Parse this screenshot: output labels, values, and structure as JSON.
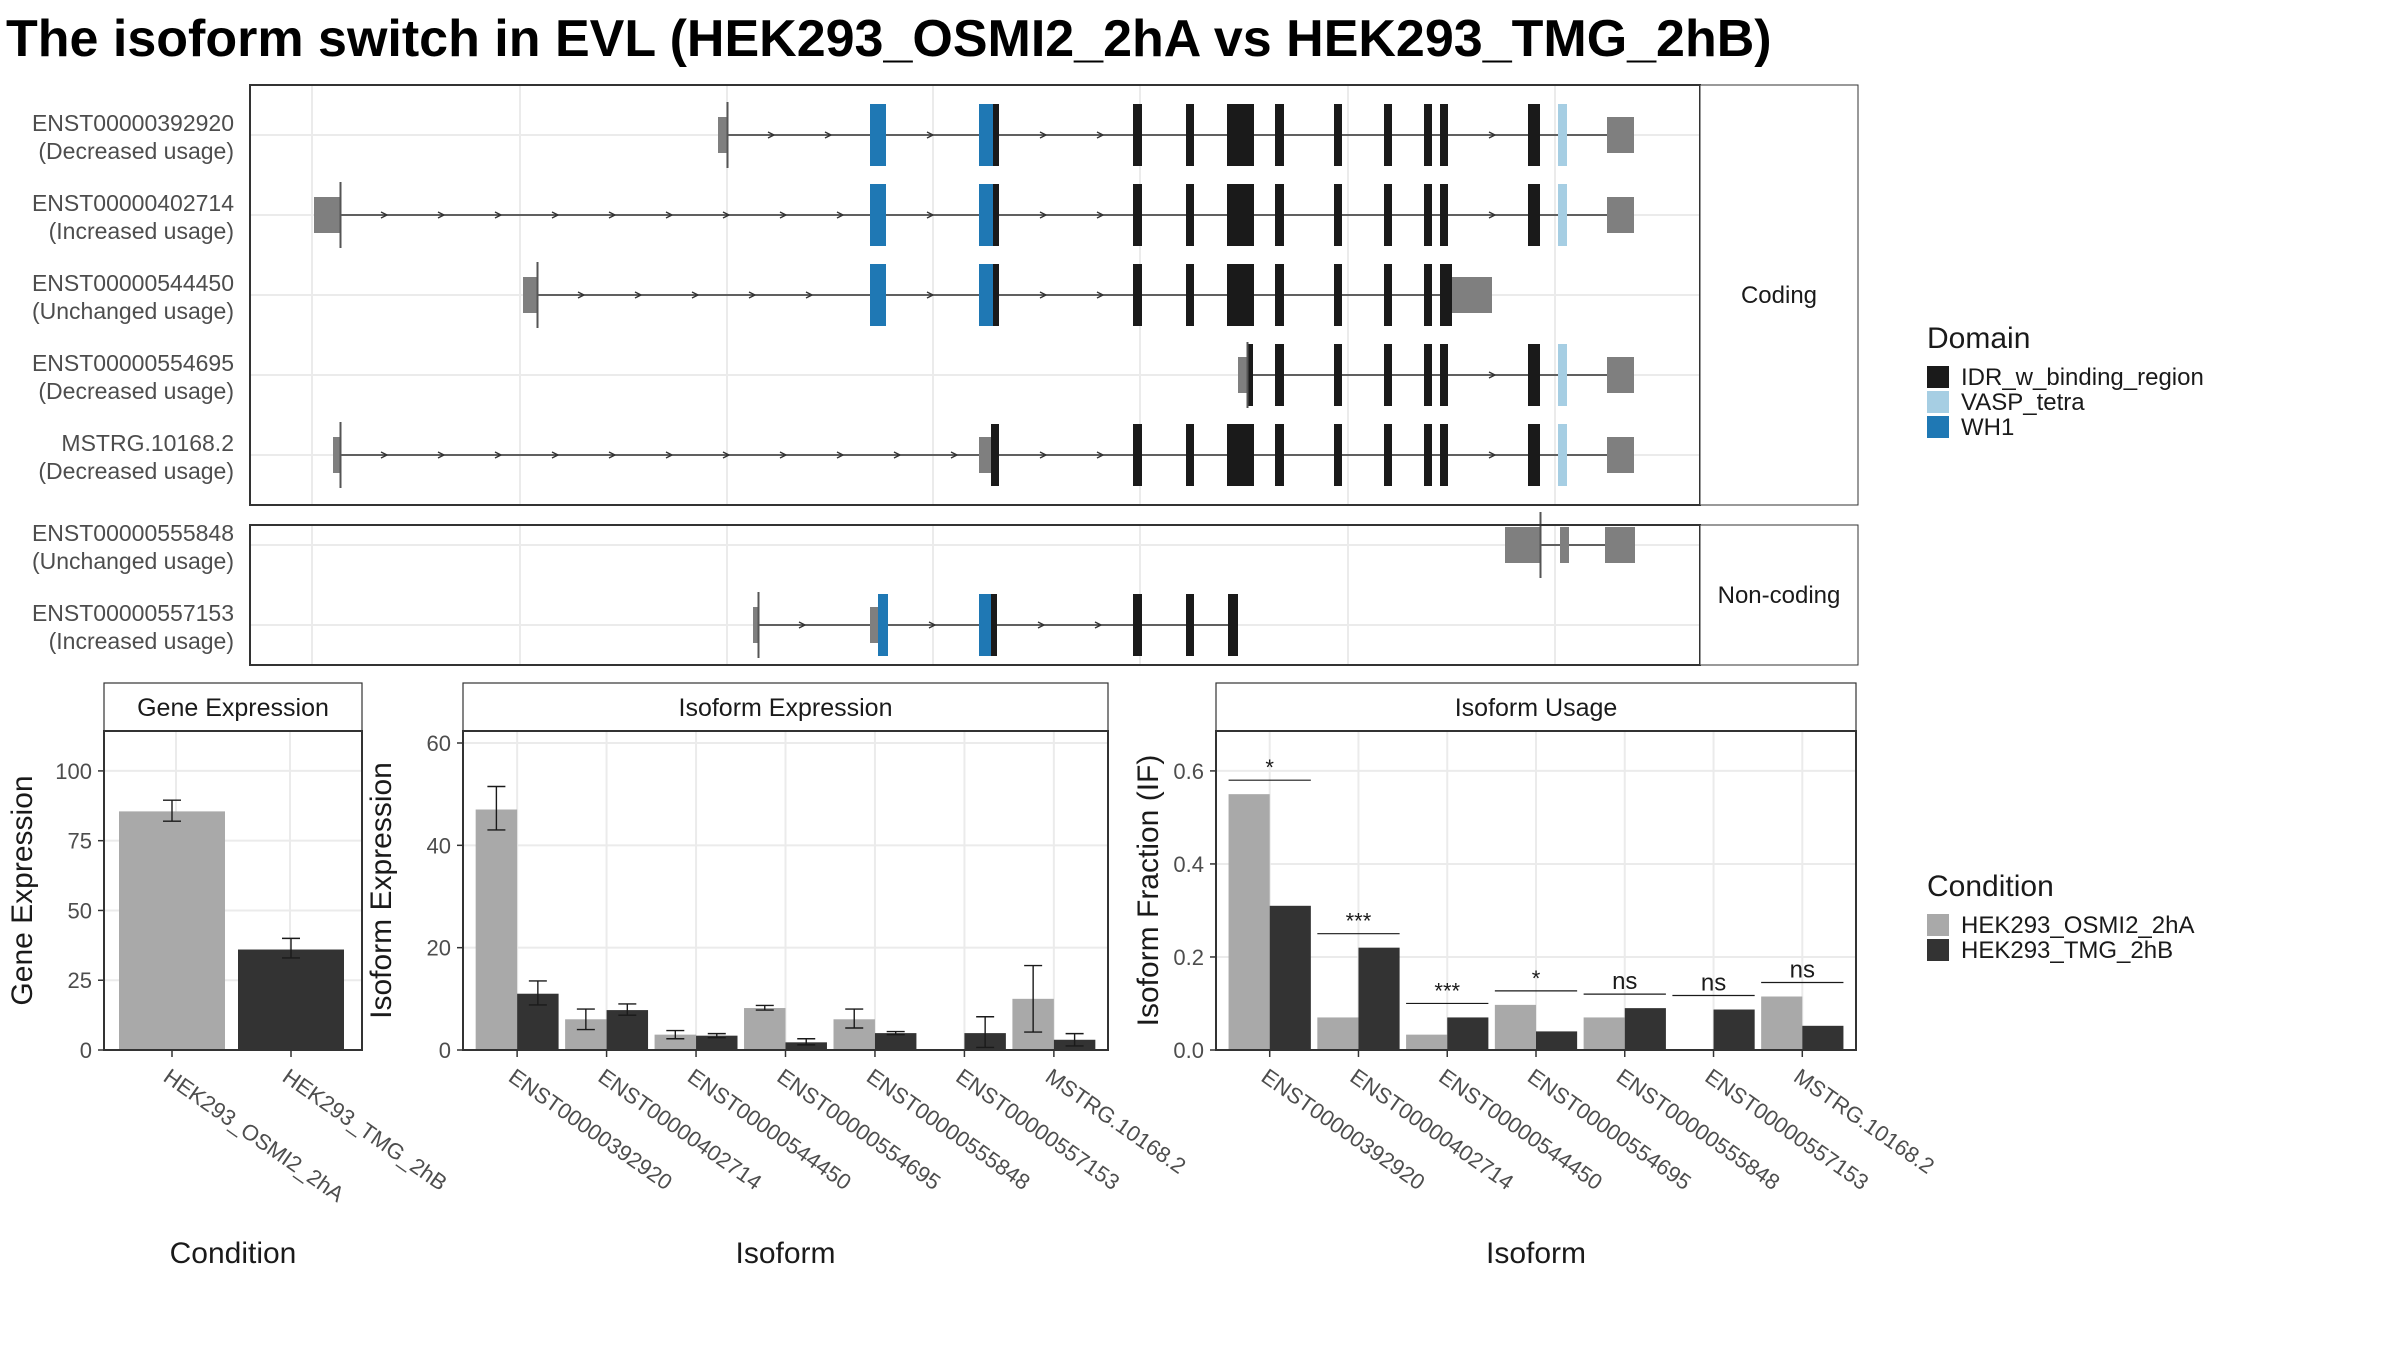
{
  "title": "The isoform switch in EVL (HEK293_OSMI2_2hA vs HEK293_TMG_2hB)",
  "colors": {
    "IDR_w_binding_region": "#1a1a1a",
    "VASP_tetra": "#a6cee3",
    "WH1": "#1f78b4",
    "non_domain_exon": "#7f7f7f",
    "cond_A": "#a9a9a9",
    "cond_B": "#333333"
  },
  "structure": {
    "panels": [
      {
        "strip": "Coding",
        "rows": [
          {
            "id": "ENST00000392920",
            "usage": "(Decreased usage)"
          },
          {
            "id": "ENST00000402714",
            "usage": "(Increased usage)"
          },
          {
            "id": "ENST00000544450",
            "usage": "(Unchanged usage)"
          },
          {
            "id": "ENST00000554695",
            "usage": "(Decreased usage)"
          },
          {
            "id": "MSTRG.10168.2",
            "usage": "(Decreased usage)"
          }
        ]
      },
      {
        "strip": "Non-coding",
        "rows": [
          {
            "id": "ENST00000555848",
            "usage": "(Unchanged usage)"
          },
          {
            "id": "ENST00000557153",
            "usage": "(Increased usage)"
          }
        ]
      }
    ],
    "legend_title": "Domain",
    "legend": [
      {
        "label": "IDR_w_binding_region",
        "key": "IDR_w_binding_region"
      },
      {
        "label": "VASP_tetra",
        "key": "VASP_tetra"
      },
      {
        "label": "WH1",
        "key": "WH1"
      }
    ]
  },
  "chart_data": [
    {
      "type": "bar",
      "title": "Gene Expression",
      "xlabel": "Condition",
      "ylabel": "Gene Expression",
      "ylim": [
        0,
        110
      ],
      "yticks": [
        0,
        25,
        50,
        75,
        100
      ],
      "categories": [
        "HEK293_OSMI2_2hA",
        "HEK293_TMG_2hB"
      ],
      "values": [
        85.5,
        36.0
      ],
      "err_low": [
        82.0,
        33.0
      ],
      "err_high": [
        89.5,
        40.0
      ]
    },
    {
      "type": "bar",
      "title": "Isoform Expression",
      "xlabel": "Isoform",
      "ylabel": "Isoform Expression",
      "ylim": [
        0,
        60
      ],
      "yticks": [
        0,
        20,
        40,
        60
      ],
      "categories": [
        "ENST00000392920",
        "ENST00000402714",
        "ENST00000544450",
        "ENST00000554695",
        "ENST00000555848",
        "ENST00000557153",
        "MSTRG.10168.2"
      ],
      "series": [
        {
          "name": "HEK293_OSMI2_2hA",
          "values": [
            47.0,
            6.0,
            3.0,
            8.2,
            6.0,
            0.0,
            10.0
          ],
          "err_low": [
            43.0,
            4.0,
            2.2,
            7.8,
            4.3,
            0.0,
            3.5
          ],
          "err_high": [
            51.5,
            8.0,
            3.8,
            8.7,
            8.0,
            0.0,
            16.5
          ]
        },
        {
          "name": "HEK293_TMG_2hB",
          "values": [
            11.0,
            7.8,
            2.8,
            1.5,
            3.3,
            3.3,
            2.0
          ],
          "err_low": [
            8.8,
            6.8,
            2.4,
            1.0,
            3.0,
            0.5,
            0.8
          ],
          "err_high": [
            13.5,
            9.0,
            3.2,
            2.2,
            3.6,
            6.5,
            3.2
          ]
        }
      ]
    },
    {
      "type": "bar",
      "title": "Isoform Usage",
      "xlabel": "Isoform",
      "ylabel": "Isoform Fraction (IF)",
      "ylim": [
        0,
        0.66
      ],
      "yticks": [
        0.0,
        0.2,
        0.4,
        0.6
      ],
      "categories": [
        "ENST00000392920",
        "ENST00000402714",
        "ENST00000544450",
        "ENST00000554695",
        "ENST00000555848",
        "ENST00000557153",
        "MSTRG.10168.2"
      ],
      "series": [
        {
          "name": "HEK293_OSMI2_2hA",
          "values": [
            0.55,
            0.07,
            0.033,
            0.097,
            0.07,
            0.0,
            0.115
          ]
        },
        {
          "name": "HEK293_TMG_2hB",
          "values": [
            0.31,
            0.22,
            0.07,
            0.04,
            0.09,
            0.087,
            0.052
          ]
        }
      ],
      "significance": [
        "*",
        "***",
        "***",
        "*",
        "ns",
        "ns",
        "ns"
      ]
    }
  ],
  "condition_legend": {
    "title": "Condition",
    "items": [
      "HEK293_OSMI2_2hA",
      "HEK293_TMG_2hB"
    ]
  }
}
